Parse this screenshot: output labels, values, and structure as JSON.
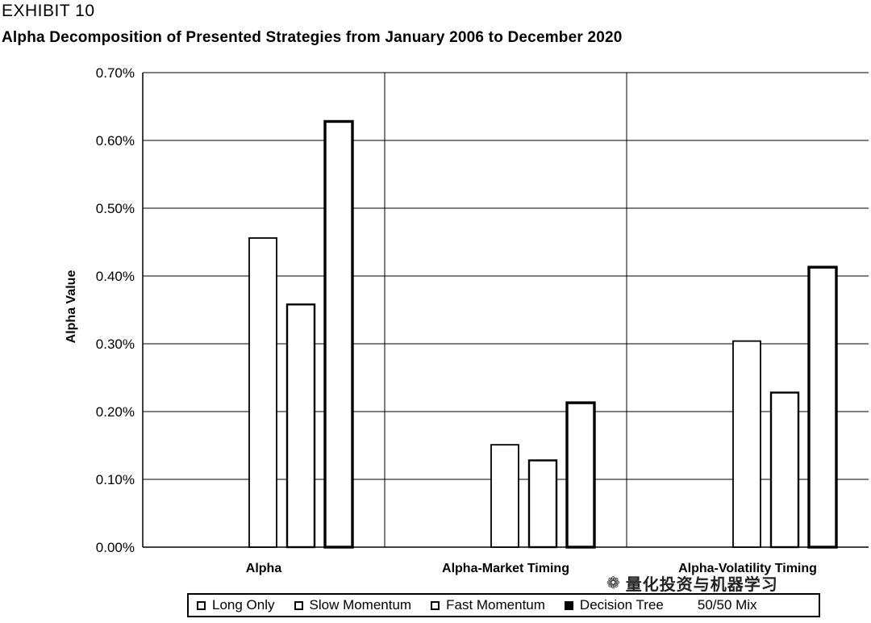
{
  "header": {
    "exhibit": "EXHIBIT 10",
    "title": "Alpha Decomposition of Presented Strategies from January 2006 to December 2020"
  },
  "watermark": {
    "icon": "wechat-icon",
    "text": "量化投资与机器学习"
  },
  "legend": {
    "items": [
      {
        "label": "Long Only",
        "swatch": "outline"
      },
      {
        "label": "Slow Momentum",
        "swatch": "outline"
      },
      {
        "label": "Fast Momentum",
        "swatch": "outline"
      },
      {
        "label": "Decision Tree",
        "swatch": "filled"
      }
    ],
    "extra": "50/50 Mix"
  },
  "chart_data": {
    "type": "bar",
    "title": "Alpha Decomposition of Presented Strategies from January 2006 to December 2020",
    "xlabel": "",
    "ylabel": "Alpha Value",
    "categories": [
      "Alpha",
      "Alpha-Market Timing",
      "Alpha-Volatility Timing"
    ],
    "series": [
      {
        "name": "Long Only",
        "values": [
          0,
          0,
          0
        ]
      },
      {
        "name": "Slow Momentum",
        "values": [
          0,
          0,
          0
        ]
      },
      {
        "name": "Fast Momentum",
        "values": [
          0.456,
          0.151,
          0.304
        ]
      },
      {
        "name": "Decision Tree",
        "values": [
          0.358,
          0.128,
          0.228
        ]
      },
      {
        "name": "50/50 Mix",
        "values": [
          0.628,
          0.213,
          0.413
        ]
      }
    ],
    "ylim": [
      0,
      0.7
    ],
    "yticks": [
      "0.00%",
      "0.10%",
      "0.20%",
      "0.30%",
      "0.40%",
      "0.50%",
      "0.60%",
      "0.70%"
    ],
    "grid": true,
    "legend_position": "bottom"
  }
}
